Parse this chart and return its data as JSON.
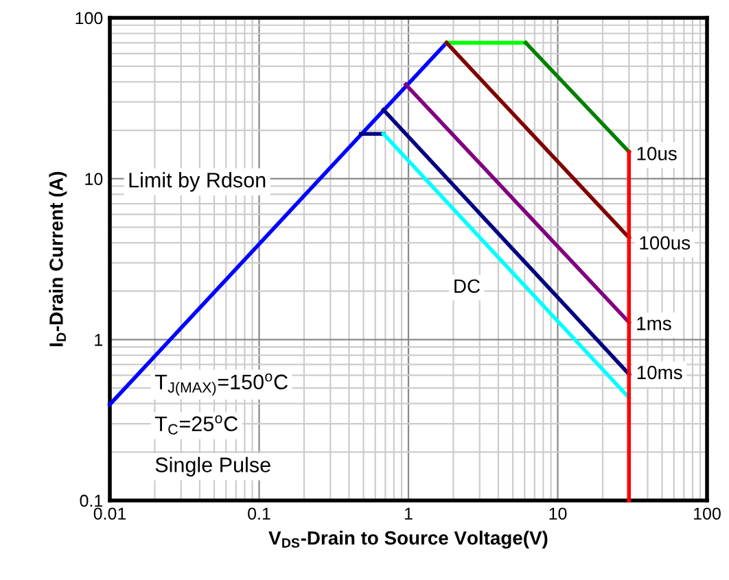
{
  "chart_data": {
    "type": "line",
    "xlabel": "V$_{DS}$-Drain to Source Voltage(V)",
    "ylabel": "I$_{D}$-Drain Current (A)",
    "log": "xy",
    "grid": true,
    "legend": false,
    "marker": "none",
    "line_style": "solid",
    "xlim": [
      0.01,
      100
    ],
    "xticks": [
      0.01,
      0.1,
      1,
      10,
      100
    ],
    "ylim": [
      0.1,
      100
    ],
    "yticks": [
      0.1,
      1,
      10,
      100
    ],
    "series": [
      {
        "color": "#0000ff",
        "x": [
          0.01,
          1.8
        ],
        "values": [
          0.395,
          70
        ]
      },
      {
        "color": "#00ff00",
        "x": [
          1.8,
          6.1
        ],
        "values": [
          70,
          70
        ]
      },
      {
        "color": "#008000",
        "x": [
          6.1,
          30
        ],
        "values": [
          70,
          14.7
        ]
      },
      {
        "color": "#800000",
        "x": [
          1.8,
          30
        ],
        "values": [
          70,
          4.3
        ]
      },
      {
        "color": "#800080",
        "x": [
          0.96,
          30
        ],
        "values": [
          38.5,
          1.28
        ]
      },
      {
        "color": "#000080",
        "x": [
          0.48,
          0.68
        ],
        "values": [
          19,
          19
        ]
      },
      {
        "color": "#000080",
        "x": [
          0.68,
          30
        ],
        "values": [
          26.8,
          0.61
        ]
      },
      {
        "color": "#00ffff",
        "x": [
          0.68,
          30
        ],
        "values": [
          19,
          0.435
        ]
      },
      {
        "color": "#ff0000",
        "x": [
          30,
          30
        ],
        "values": [
          0.1,
          14.7
        ]
      }
    ],
    "annotations": [
      "Limit by Rdson",
      {
        "text": "10us",
        "x": 46,
        "y": 14
      },
      {
        "text": "100us",
        "x": 52,
        "y": 3.9
      },
      {
        "text": "1ms",
        "x": 44,
        "y": 1.23
      },
      {
        "text": "10ms",
        "x": 48,
        "y": 0.61
      },
      {
        "text": "DC",
        "x": 2.46,
        "y": 2.1
      },
      "T$_{J(MAX)}$=150$^{o}$C",
      "T$_{C}$=25$^{o}$C",
      "Single Pulse"
    ]
  }
}
